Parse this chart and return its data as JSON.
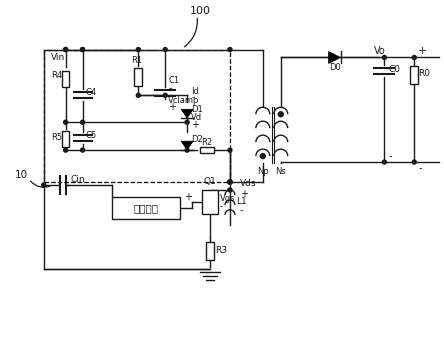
{
  "bg": "#ffffff",
  "lc": "#1a1a1a",
  "fw": 4.44,
  "fh": 3.57,
  "dpi": 100,
  "title": "100",
  "Vin": "Vin",
  "labels": {
    "R1": "R1",
    "C1": "C1",
    "Vclamp": "Vclamp",
    "Id": "Id",
    "Vd": "Vd",
    "R4": "R4",
    "C4": "C4",
    "R5": "R5",
    "C5": "C5",
    "D1": "D1",
    "D2": "D2",
    "R2": "R2",
    "Np": "Np",
    "Ns": "Ns",
    "D0": "D0",
    "Vo": "Vo",
    "C0": "C0",
    "R0": "R0",
    "L1": "L1",
    "Q1": "Q1",
    "Vgs": "Vgs",
    "Vds": "Vds",
    "R3": "R3",
    "Cin": "Cin",
    "ctrl": "控制模块",
    "num10": "10"
  }
}
